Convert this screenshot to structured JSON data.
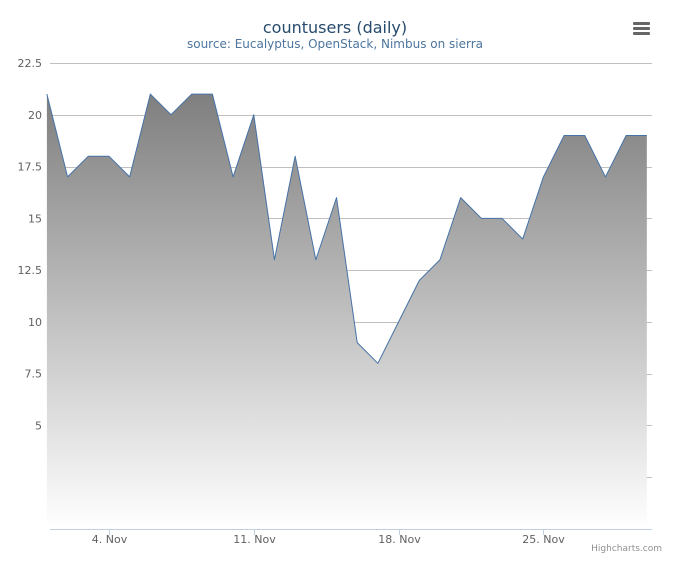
{
  "chart_data": {
    "type": "area",
    "title": "countusers (daily)",
    "subtitle": "source: Eucalyptus, OpenStack, Nimbus on sierra",
    "xlabel": "",
    "ylabel": "",
    "y_ticks": [
      "5",
      "7.5",
      "10",
      "12.5",
      "15",
      "17.5",
      "20",
      "22.5"
    ],
    "y_tick_values": [
      5,
      7.5,
      10,
      12.5,
      15,
      17.5,
      20,
      22.5
    ],
    "ylim": [
      0,
      22.5
    ],
    "x_ticks": [
      "4. Nov",
      "11. Nov",
      "18. Nov",
      "25. Nov"
    ],
    "x_tick_days": [
      4,
      11,
      18,
      25
    ],
    "xlim_days": [
      1.15,
      30.25
    ],
    "grid": true,
    "legend": "none",
    "series": [
      {
        "x": [
          "2013-11-01",
          "2013-11-02",
          "2013-11-03",
          "2013-11-04",
          "2013-11-05",
          "2013-11-06",
          "2013-11-07",
          "2013-11-08",
          "2013-11-09",
          "2013-11-10",
          "2013-11-11",
          "2013-11-12",
          "2013-11-13",
          "2013-11-14",
          "2013-11-15",
          "2013-11-16",
          "2013-11-17",
          "2013-11-18",
          "2013-11-19",
          "2013-11-20",
          "2013-11-21",
          "2013-11-22",
          "2013-11-23",
          "2013-11-24",
          "2013-11-25",
          "2013-11-26",
          "2013-11-27",
          "2013-11-28",
          "2013-11-29",
          "2013-11-30"
        ],
        "values": [
          21,
          17,
          18,
          18,
          17,
          21,
          20,
          21,
          21,
          17,
          20,
          13,
          18,
          13,
          16,
          9,
          8,
          10,
          12,
          13,
          16,
          15,
          15,
          14,
          17,
          19,
          19,
          17,
          19,
          19
        ]
      }
    ],
    "colors": {
      "line": "#4572A7",
      "fill_top": "#7f7f7f",
      "fill_bottom": "#ffffff",
      "grid": "#C0C0C0",
      "axis": "#C0D0E0",
      "title": "#274b6d",
      "subtitle": "#4d759e",
      "tick_label": "#606060"
    }
  },
  "ui": {
    "menu_icon": "hamburger-menu-icon",
    "credits": "Highcharts.com"
  }
}
